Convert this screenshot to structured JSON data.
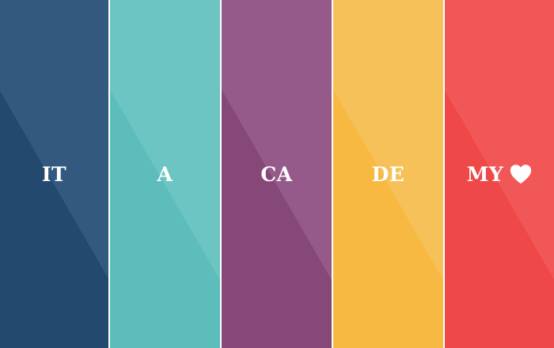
{
  "panels": [
    {
      "label": "IT",
      "color": "#2e5378",
      "dark": "#23496f",
      "light": "#33597f"
    },
    {
      "label": "A",
      "color": "#65c1bf",
      "dark": "#5dbdba",
      "light": "#6cc5c2"
    },
    {
      "label": "CA",
      "color": "#8e5384",
      "dark": "#854879",
      "light": "#955a8a"
    },
    {
      "label": "DE",
      "color": "#f6bc4b",
      "dark": "#f7b941",
      "light": "#f5c158"
    },
    {
      "label": "MY",
      "color": "#f25152",
      "dark": "#ef4848",
      "light": "#f25758"
    }
  ],
  "icons": {
    "end": "heart-icon"
  }
}
